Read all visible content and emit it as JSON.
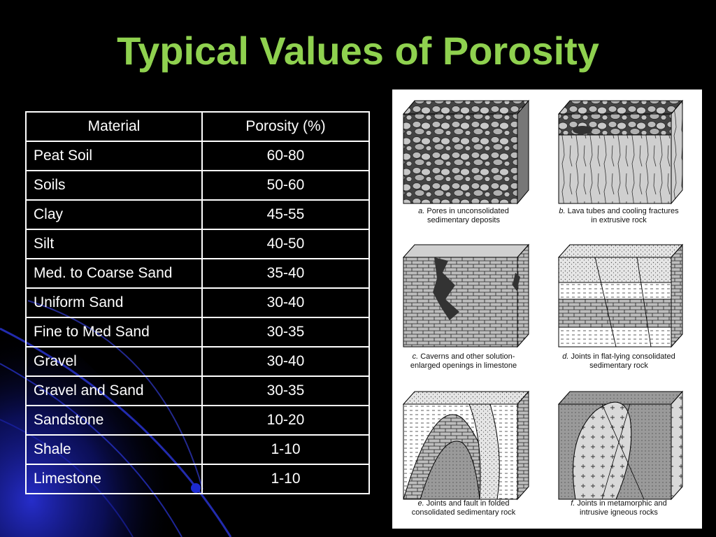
{
  "slide": {
    "title": "Typical Values of Porosity"
  },
  "table": {
    "headers": [
      "Material",
      "Porosity (%)"
    ],
    "rows": [
      {
        "material": "Peat Soil",
        "porosity": "60-80"
      },
      {
        "material": "Soils",
        "porosity": "50-60"
      },
      {
        "material": "Clay",
        "porosity": "45-55"
      },
      {
        "material": "Silt",
        "porosity": "40-50"
      },
      {
        "material": "Med. to Coarse Sand",
        "porosity": "35-40"
      },
      {
        "material": "Uniform Sand",
        "porosity": "30-40"
      },
      {
        "material": "Fine to Med Sand",
        "porosity": "30-35"
      },
      {
        "material": "Gravel",
        "porosity": "30-40"
      },
      {
        "material": "Gravel and Sand",
        "porosity": "30-35"
      },
      {
        "material": "Sandstone",
        "porosity": "10-20"
      },
      {
        "material": "Shale",
        "porosity": "1-10"
      },
      {
        "material": "Limestone",
        "porosity": "1-10"
      }
    ]
  },
  "figure": {
    "panels": [
      {
        "letter": "a.",
        "caption": "Pores in unconsolidated sedimentary deposits"
      },
      {
        "letter": "b.",
        "caption": "Lava tubes and cooling fractures in extrusive rock"
      },
      {
        "letter": "c.",
        "caption": "Caverns and other solution-enlarged openings in limestone"
      },
      {
        "letter": "d.",
        "caption": "Joints in flat-lying consolidated sedimentary rock"
      },
      {
        "letter": "e.",
        "caption": "Joints and fault in folded consolidated sedimentary rock"
      },
      {
        "letter": "f.",
        "caption": "Joints in metamorphic and intrusive igneous rocks"
      }
    ]
  },
  "colors": {
    "background": "#000000",
    "title": "#8fd14f",
    "text": "#ffffff",
    "accent_blue": "#1a22c8"
  }
}
